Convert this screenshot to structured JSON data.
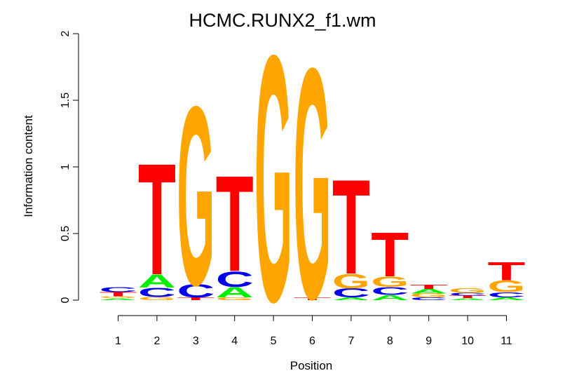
{
  "chart_data": {
    "type": "sequence-logo",
    "title": "HCMC.RUNX2_f1.wm",
    "xlabel": "Position",
    "ylabel": "Information content",
    "ylim": [
      0,
      2
    ],
    "y_ticks": [
      "0",
      "0.5",
      "1",
      "1.5",
      "2"
    ],
    "positions": [
      "1",
      "2",
      "3",
      "4",
      "5",
      "6",
      "7",
      "8",
      "9",
      "10",
      "11"
    ],
    "colors": {
      "A": "#00ee00",
      "C": "#0000ee",
      "G": "#ffa500",
      "T": "#ff0000"
    },
    "stacks": [
      [
        {
          "letter": "A",
          "height": 0.015
        },
        {
          "letter": "G",
          "height": 0.015
        },
        {
          "letter": "T",
          "height": 0.03
        },
        {
          "letter": "C",
          "height": 0.04
        }
      ],
      [
        {
          "letter": "G",
          "height": 0.025
        },
        {
          "letter": "C",
          "height": 0.07
        },
        {
          "letter": "A",
          "height": 0.1
        },
        {
          "letter": "T",
          "height": 0.86
        }
      ],
      [
        {
          "letter": "T",
          "height": 0.02
        },
        {
          "letter": "C",
          "height": 0.1
        },
        {
          "letter": "G",
          "height": 1.38
        }
      ],
      [
        {
          "letter": "G",
          "height": 0.02
        },
        {
          "letter": "A",
          "height": 0.08
        },
        {
          "letter": "C",
          "height": 0.12
        },
        {
          "letter": "T",
          "height": 0.74
        }
      ],
      [
        {
          "letter": "G",
          "height": 1.9
        }
      ],
      [
        {
          "letter": "T",
          "height": 0.02
        },
        {
          "letter": "G",
          "height": 1.78
        }
      ],
      [
        {
          "letter": "A",
          "height": 0.02
        },
        {
          "letter": "C",
          "height": 0.07
        },
        {
          "letter": "G",
          "height": 0.11
        },
        {
          "letter": "T",
          "height": 0.73
        }
      ],
      [
        {
          "letter": "A",
          "height": 0.04
        },
        {
          "letter": "C",
          "height": 0.06
        },
        {
          "letter": "G",
          "height": 0.08
        },
        {
          "letter": "T",
          "height": 0.34
        }
      ],
      [
        {
          "letter": "C",
          "height": 0.02
        },
        {
          "letter": "G",
          "height": 0.03
        },
        {
          "letter": "A",
          "height": 0.035
        },
        {
          "letter": "T",
          "height": 0.03
        }
      ],
      [
        {
          "letter": "A",
          "height": 0.015
        },
        {
          "letter": "T",
          "height": 0.02
        },
        {
          "letter": "C",
          "height": 0.02
        },
        {
          "letter": "G",
          "height": 0.035
        }
      ],
      [
        {
          "letter": "A",
          "height": 0.02
        },
        {
          "letter": "C",
          "height": 0.04
        },
        {
          "letter": "G",
          "height": 0.09
        },
        {
          "letter": "T",
          "height": 0.14
        }
      ]
    ]
  }
}
